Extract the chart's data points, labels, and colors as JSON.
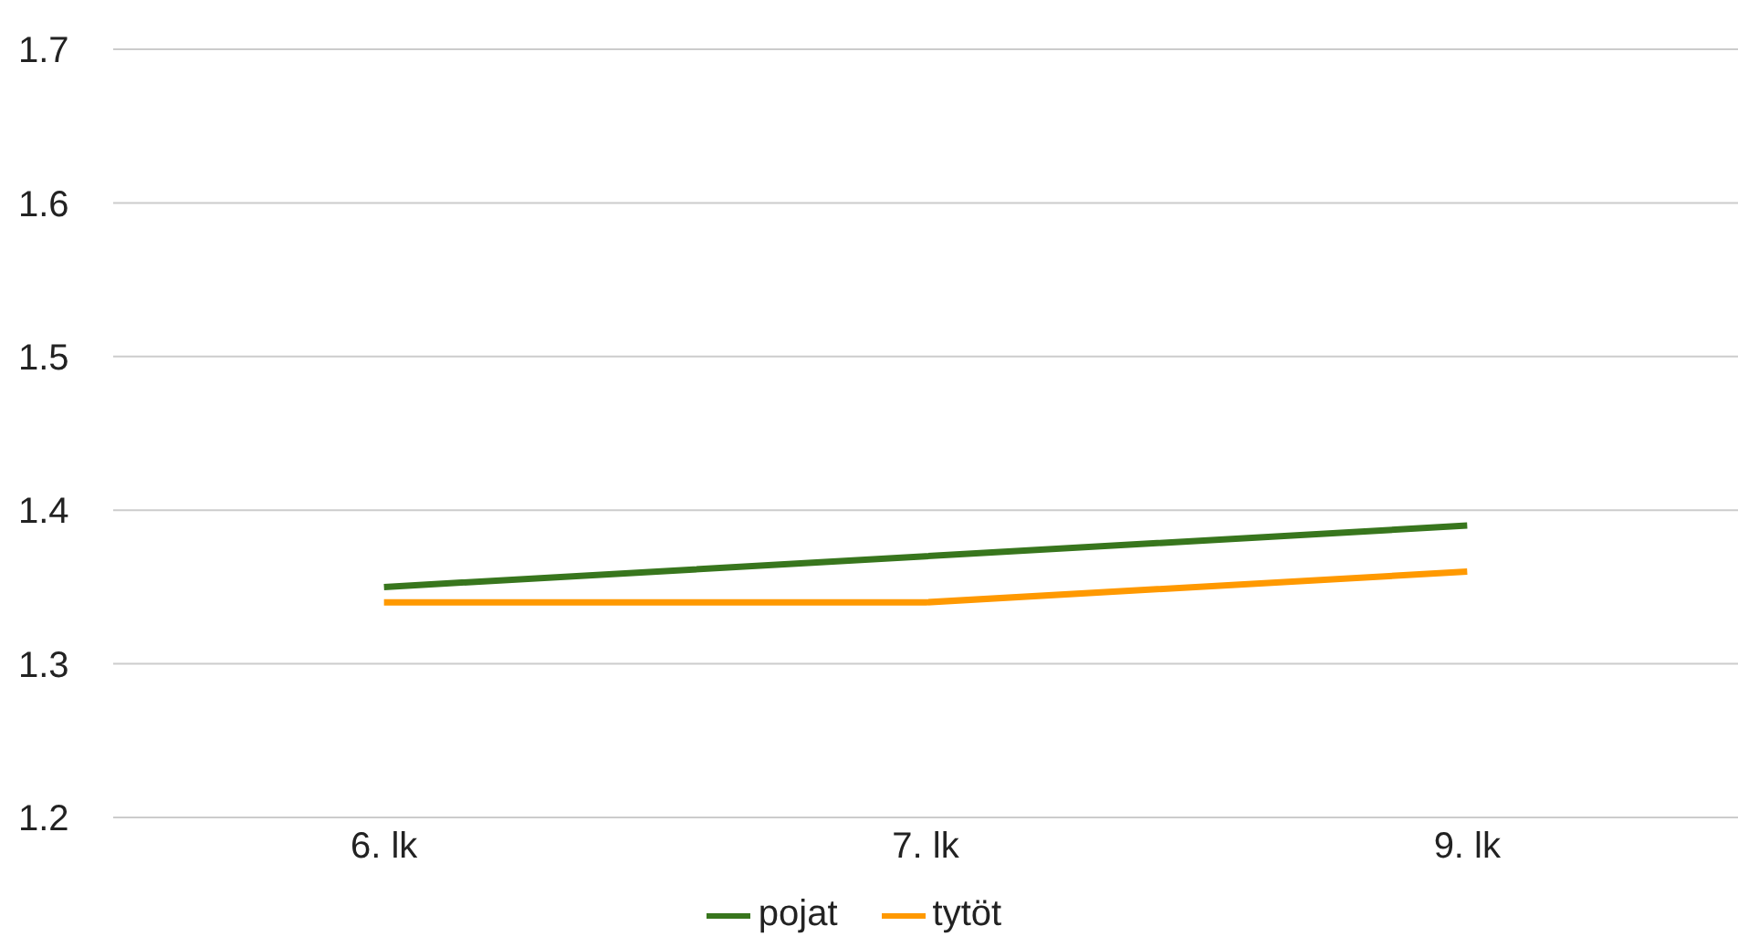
{
  "chart_data": {
    "type": "line",
    "categories": [
      "6. lk",
      "7. lk",
      "9. lk"
    ],
    "series": [
      {
        "name": "tytöt",
        "color": "#ff9900",
        "values": [
          1.34,
          1.34,
          1.36
        ]
      },
      {
        "name": "pojat",
        "color": "#38761d",
        "values": [
          1.35,
          1.37,
          1.39
        ]
      }
    ],
    "ylim": [
      1.2,
      1.7
    ],
    "yticks": [
      1.2,
      1.3,
      1.4,
      1.5,
      1.6,
      1.7
    ],
    "grid": "y",
    "legend": "bottom",
    "marker": "none",
    "line_style": "solid"
  }
}
